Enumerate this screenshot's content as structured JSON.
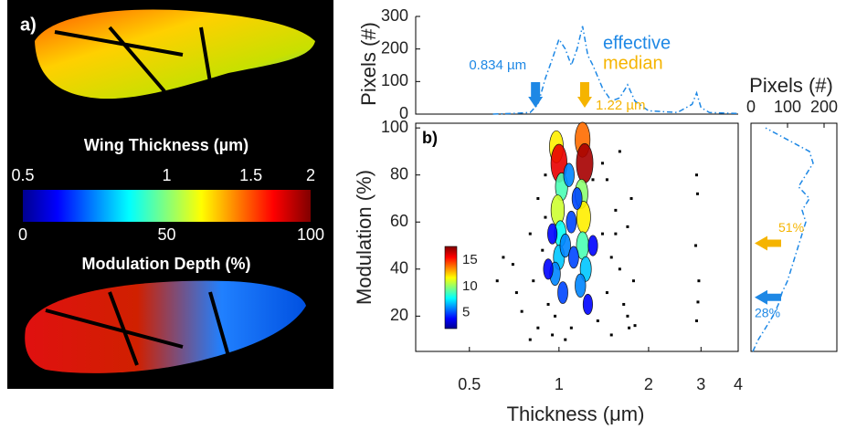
{
  "chart_data": [
    {
      "type": "colorbar",
      "label": "a)",
      "title": "Wing Thickness (µm)",
      "xlim": [
        0.5,
        2
      ],
      "xticks": [
        0.5,
        1,
        1.5,
        2
      ],
      "xlog": true,
      "x2lim": [
        0,
        100
      ],
      "x2ticks": [
        0,
        50,
        100
      ],
      "x2label": "Modulation Depth (%)"
    },
    {
      "type": "line",
      "ylabel": "Pixels (#)",
      "xlim": [
        0.33,
        4
      ],
      "xlog": true,
      "ylim": [
        0,
        300
      ],
      "yticks": [
        0,
        100,
        200,
        300
      ],
      "color": "#1e88e5",
      "linestyle": "dashdot",
      "x": [
        0.6,
        0.7,
        0.8,
        0.85,
        0.9,
        0.95,
        1.0,
        1.05,
        1.1,
        1.15,
        1.2,
        1.25,
        1.3,
        1.4,
        1.5,
        1.6,
        1.7,
        1.8,
        2.0,
        2.5,
        2.8,
        2.9,
        3.0,
        3.2,
        3.6,
        4.0
      ],
      "values": [
        0,
        2,
        5,
        30,
        110,
        170,
        230,
        200,
        150,
        200,
        270,
        180,
        150,
        80,
        40,
        50,
        90,
        40,
        10,
        5,
        30,
        65,
        20,
        5,
        3,
        2
      ],
      "legend": [
        {
          "name": "effective",
          "color": "#1e88e5"
        },
        {
          "name": "median",
          "color": "#f5b400"
        }
      ],
      "annotations": [
        {
          "value": 0.834,
          "label": "0.834 µm",
          "color": "#1e88e5"
        },
        {
          "value": 1.22,
          "label": "1.22 µm",
          "color": "#f5b400"
        }
      ]
    },
    {
      "type": "line",
      "orientation": "horizontal",
      "xlabel": "Pixels (#)",
      "xlim": [
        0,
        235
      ],
      "xticks": [
        0,
        100,
        200
      ],
      "ylim": [
        5,
        102
      ],
      "color": "#1e88e5",
      "linestyle": "dashdot",
      "y": [
        5,
        10,
        15,
        20,
        25,
        30,
        35,
        40,
        45,
        50,
        55,
        60,
        65,
        70,
        75,
        80,
        85,
        90,
        95,
        100
      ],
      "values": [
        5,
        20,
        40,
        60,
        75,
        85,
        100,
        110,
        120,
        130,
        140,
        150,
        140,
        160,
        130,
        150,
        170,
        160,
        100,
        40
      ],
      "annotations": [
        {
          "value": 51,
          "label": "51%",
          "color": "#f5b400"
        },
        {
          "value": 28,
          "label": "28%",
          "color": "#1e88e5"
        }
      ]
    },
    {
      "type": "scatter",
      "label": "b)",
      "xlabel": "Thickness (μm)",
      "ylabel": "Modulation (%)",
      "xlim": [
        0.33,
        4
      ],
      "xlog": true,
      "xticks": [
        0.5,
        1,
        2,
        3,
        4
      ],
      "ylim": [
        5,
        102
      ],
      "yticks": [
        20,
        40,
        60,
        80,
        100
      ],
      "color": "#000000",
      "x": [
        0.7,
        0.72,
        0.75,
        0.8,
        0.82,
        0.85,
        0.88,
        0.9,
        0.92,
        0.95,
        0.97,
        1.05,
        1.1,
        1.3,
        1.35,
        1.4,
        1.45,
        1.5,
        1.55,
        1.6,
        1.65,
        1.7,
        1.72,
        1.75,
        1.78,
        1.8,
        1.5,
        1.4,
        0.9,
        0.85,
        0.8,
        1.6,
        1.7,
        2.9,
        2.92,
        2.88,
        2.95,
        2.9,
        2.93,
        0.62,
        0.65,
        1.55,
        1.45
      ],
      "values": [
        42,
        30,
        22,
        55,
        35,
        15,
        48,
        62,
        25,
        12,
        20,
        10,
        15,
        78,
        18,
        55,
        30,
        12,
        65,
        40,
        25,
        20,
        15,
        70,
        35,
        16,
        45,
        85,
        80,
        70,
        10,
        90,
        58,
        80,
        72,
        50,
        35,
        18,
        26,
        35,
        45,
        55,
        78
      ],
      "density": {
        "x": [
          0.98,
          1.0,
          1.02,
          0.99,
          1.01,
          1.0,
          0.97,
          1.03,
          1.2,
          1.22,
          1.19,
          1.21,
          1.2,
          1.23,
          1.18,
          1.1,
          1.05,
          1.12,
          0.95,
          1.3,
          1.15,
          1.08,
          0.92,
          1.25
        ],
        "y": [
          92,
          85,
          75,
          65,
          55,
          45,
          38,
          30,
          95,
          85,
          72,
          62,
          50,
          40,
          33,
          60,
          50,
          45,
          55,
          50,
          70,
          80,
          40,
          25
        ],
        "values": [
          12,
          16,
          9,
          11,
          8,
          7,
          6,
          5,
          14,
          17,
          10,
          12,
          9,
          7,
          6,
          5,
          6,
          5,
          4,
          4,
          5,
          6,
          4,
          4
        ]
      },
      "clim": [
        2,
        17.6
      ],
      "cticks": [
        5,
        10,
        15
      ]
    }
  ]
}
